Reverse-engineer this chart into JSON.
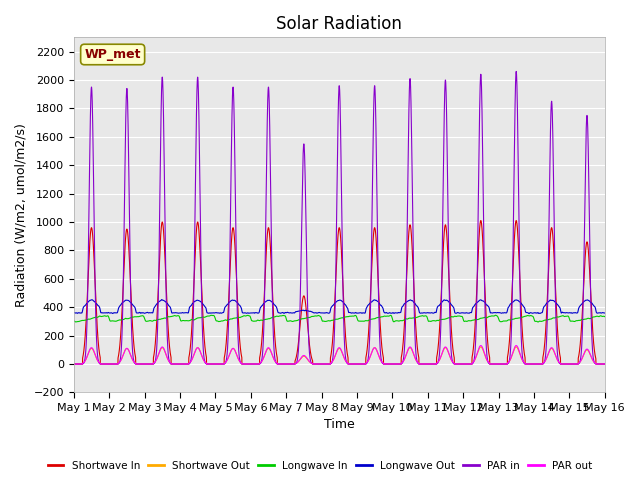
{
  "title": "Solar Radiation",
  "xlabel": "Time",
  "ylabel": "Radiation (W/m2, umol/m2/s)",
  "ylim": [
    -200,
    2300
  ],
  "yticks": [
    -200,
    0,
    200,
    400,
    600,
    800,
    1000,
    1200,
    1400,
    1600,
    1800,
    2000,
    2200
  ],
  "label_box": "WP_met",
  "label_box_facecolor": "#ffffcc",
  "label_box_edgecolor": "#888800",
  "label_box_text_color": "#880000",
  "plot_bg_color": "#e8e8e8",
  "fig_bg_color": "#ffffff",
  "n_days": 15,
  "points_per_day": 288,
  "series": {
    "shortwave_in": {
      "color": "#dd0000",
      "label": "Shortwave In",
      "lw": 0.8
    },
    "shortwave_out": {
      "color": "#ffaa00",
      "label": "Shortwave Out",
      "lw": 0.8
    },
    "longwave_in": {
      "color": "#00cc00",
      "label": "Longwave In",
      "lw": 0.8
    },
    "longwave_out": {
      "color": "#0000cc",
      "label": "Longwave Out",
      "lw": 0.8
    },
    "par_in": {
      "color": "#8800cc",
      "label": "PAR in",
      "lw": 0.8
    },
    "par_out": {
      "color": "#ff00ff",
      "label": "PAR out",
      "lw": 0.8
    }
  },
  "xtick_labels": [
    "May 1",
    "May 2",
    "May 3",
    "May 4",
    "May 5",
    "May 6",
    "May 7",
    "May 8",
    "May 9",
    "May 10",
    "May 11",
    "May 12",
    "May 13",
    "May 14",
    "May 15",
    "May 16"
  ],
  "title_fontsize": 12,
  "axis_label_fontsize": 9,
  "tick_fontsize": 8
}
